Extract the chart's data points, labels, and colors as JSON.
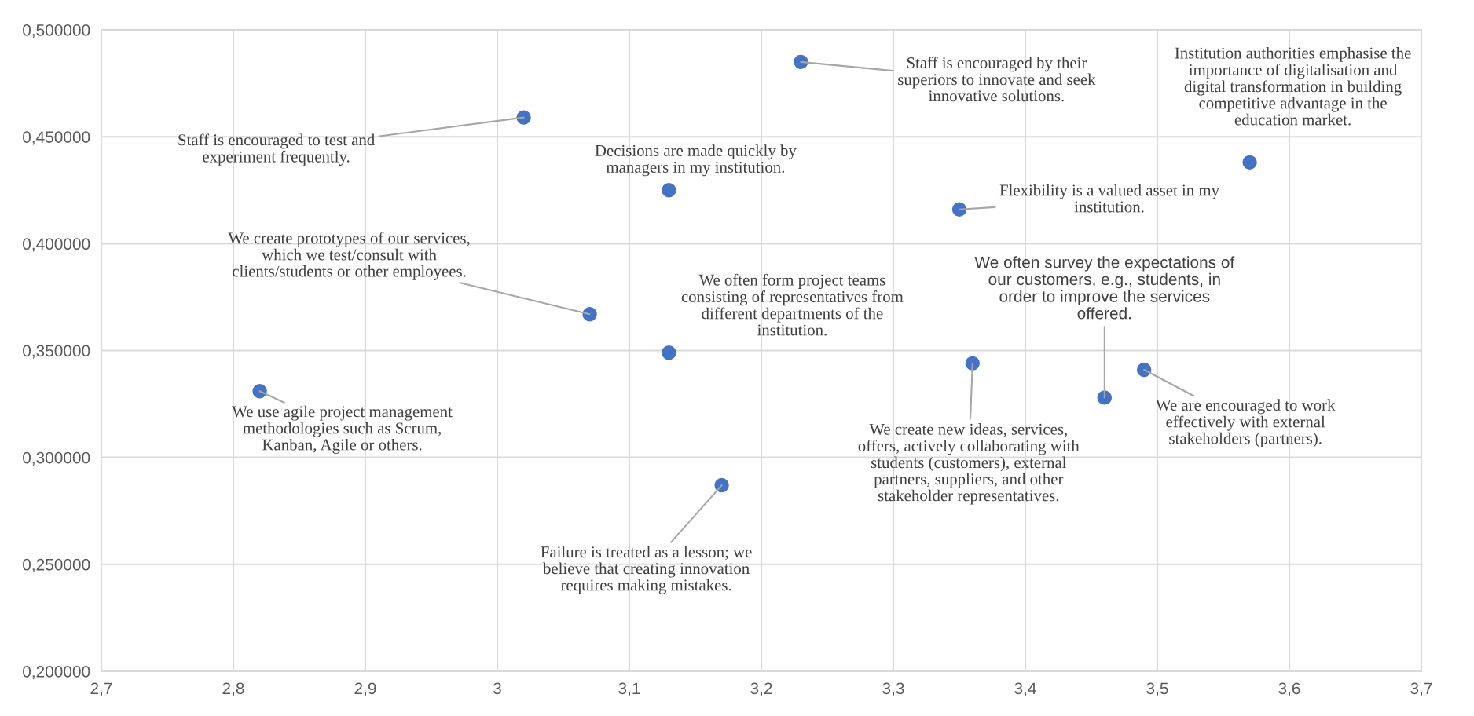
{
  "chart_data": {
    "type": "scatter",
    "color": "#4472c4",
    "marker": "circle",
    "grid": true,
    "legend": false,
    "x": [
      3.02,
      3.23,
      3.57,
      3.13,
      3.35,
      3.07,
      3.13,
      3.36,
      3.46,
      3.49,
      2.82,
      3.17
    ],
    "values": [
      0.459,
      0.485,
      0.438,
      0.425,
      0.416,
      0.367,
      0.349,
      0.344,
      0.328,
      0.341,
      0.331,
      0.287
    ],
    "xlim": [
      2.7,
      3.7
    ],
    "xticks": [
      {
        "value": 2.7,
        "label": "2,7"
      },
      {
        "value": 2.8,
        "label": "2,8"
      },
      {
        "value": 2.9,
        "label": "2,9"
      },
      {
        "value": 3.0,
        "label": "3"
      },
      {
        "value": 3.1,
        "label": "3,1"
      },
      {
        "value": 3.2,
        "label": "3,2"
      },
      {
        "value": 3.3,
        "label": "3,3"
      },
      {
        "value": 3.4,
        "label": "3,4"
      },
      {
        "value": 3.5,
        "label": "3,5"
      },
      {
        "value": 3.6,
        "label": "3,6"
      },
      {
        "value": 3.7,
        "label": "3,7"
      }
    ],
    "ylim": [
      0.2,
      0.5
    ],
    "yticks": [
      {
        "value": 0.2,
        "label": "0,200000"
      },
      {
        "value": 0.25,
        "label": "0,250000"
      },
      {
        "value": 0.3,
        "label": "0,300000"
      },
      {
        "value": 0.35,
        "label": "0,350000"
      },
      {
        "value": 0.4,
        "label": "0,400000"
      },
      {
        "value": 0.45,
        "label": "0,450000"
      },
      {
        "value": 0.5,
        "label": "0,500000"
      }
    ],
    "annotations": [
      {
        "text": "Staff is encouraged to test and\nexperiment frequently.",
        "x": 3.02,
        "y": 0.459
      },
      {
        "text": "Staff is encouraged by their\nsuperiors to innovate and seek\ninnovative solutions.",
        "x": 3.23,
        "y": 0.485
      },
      {
        "text": "Institution authorities emphasise the\nimportance of digitalisation and\ndigital transformation in building\ncompetitive advantage in the\neducation market.",
        "x": 3.57,
        "y": 0.438
      },
      {
        "text": "Decisions are made quickly by\nmanagers in my institution.",
        "x": 3.13,
        "y": 0.425
      },
      {
        "text": "Flexibility is a valued asset in my\ninstitution.",
        "x": 3.35,
        "y": 0.416
      },
      {
        "text": "We create prototypes of our services,\nwhich we test/consult with\nclients/students or other employees.",
        "x": 3.07,
        "y": 0.367
      },
      {
        "text": "We often form project teams\nconsisting of representatives from\ndifferent departments of the\ninstitution.",
        "x": 3.13,
        "y": 0.349
      },
      {
        "text": "We create new ideas, services,\noffers, actively collaborating with\nstudents (customers), external\npartners, suppliers, and other\nstakeholder representatives.",
        "x": 3.36,
        "y": 0.344
      },
      {
        "text": "We often survey the expectations of\nour customers, e.g., students, in\norder to improve the services\noffered.",
        "x": 3.46,
        "y": 0.328
      },
      {
        "text": "We are encouraged to work\neffectively with external\nstakeholders (partners).",
        "x": 3.49,
        "y": 0.341
      },
      {
        "text": "We use agile project management\nmethodologies such as Scrum,\nKanban, Agile or others.",
        "x": 2.82,
        "y": 0.331
      },
      {
        "text": "Failure is treated as a lesson; we\nbelieve that creating innovation\nrequires making mistakes.",
        "x": 3.17,
        "y": 0.287
      }
    ]
  }
}
